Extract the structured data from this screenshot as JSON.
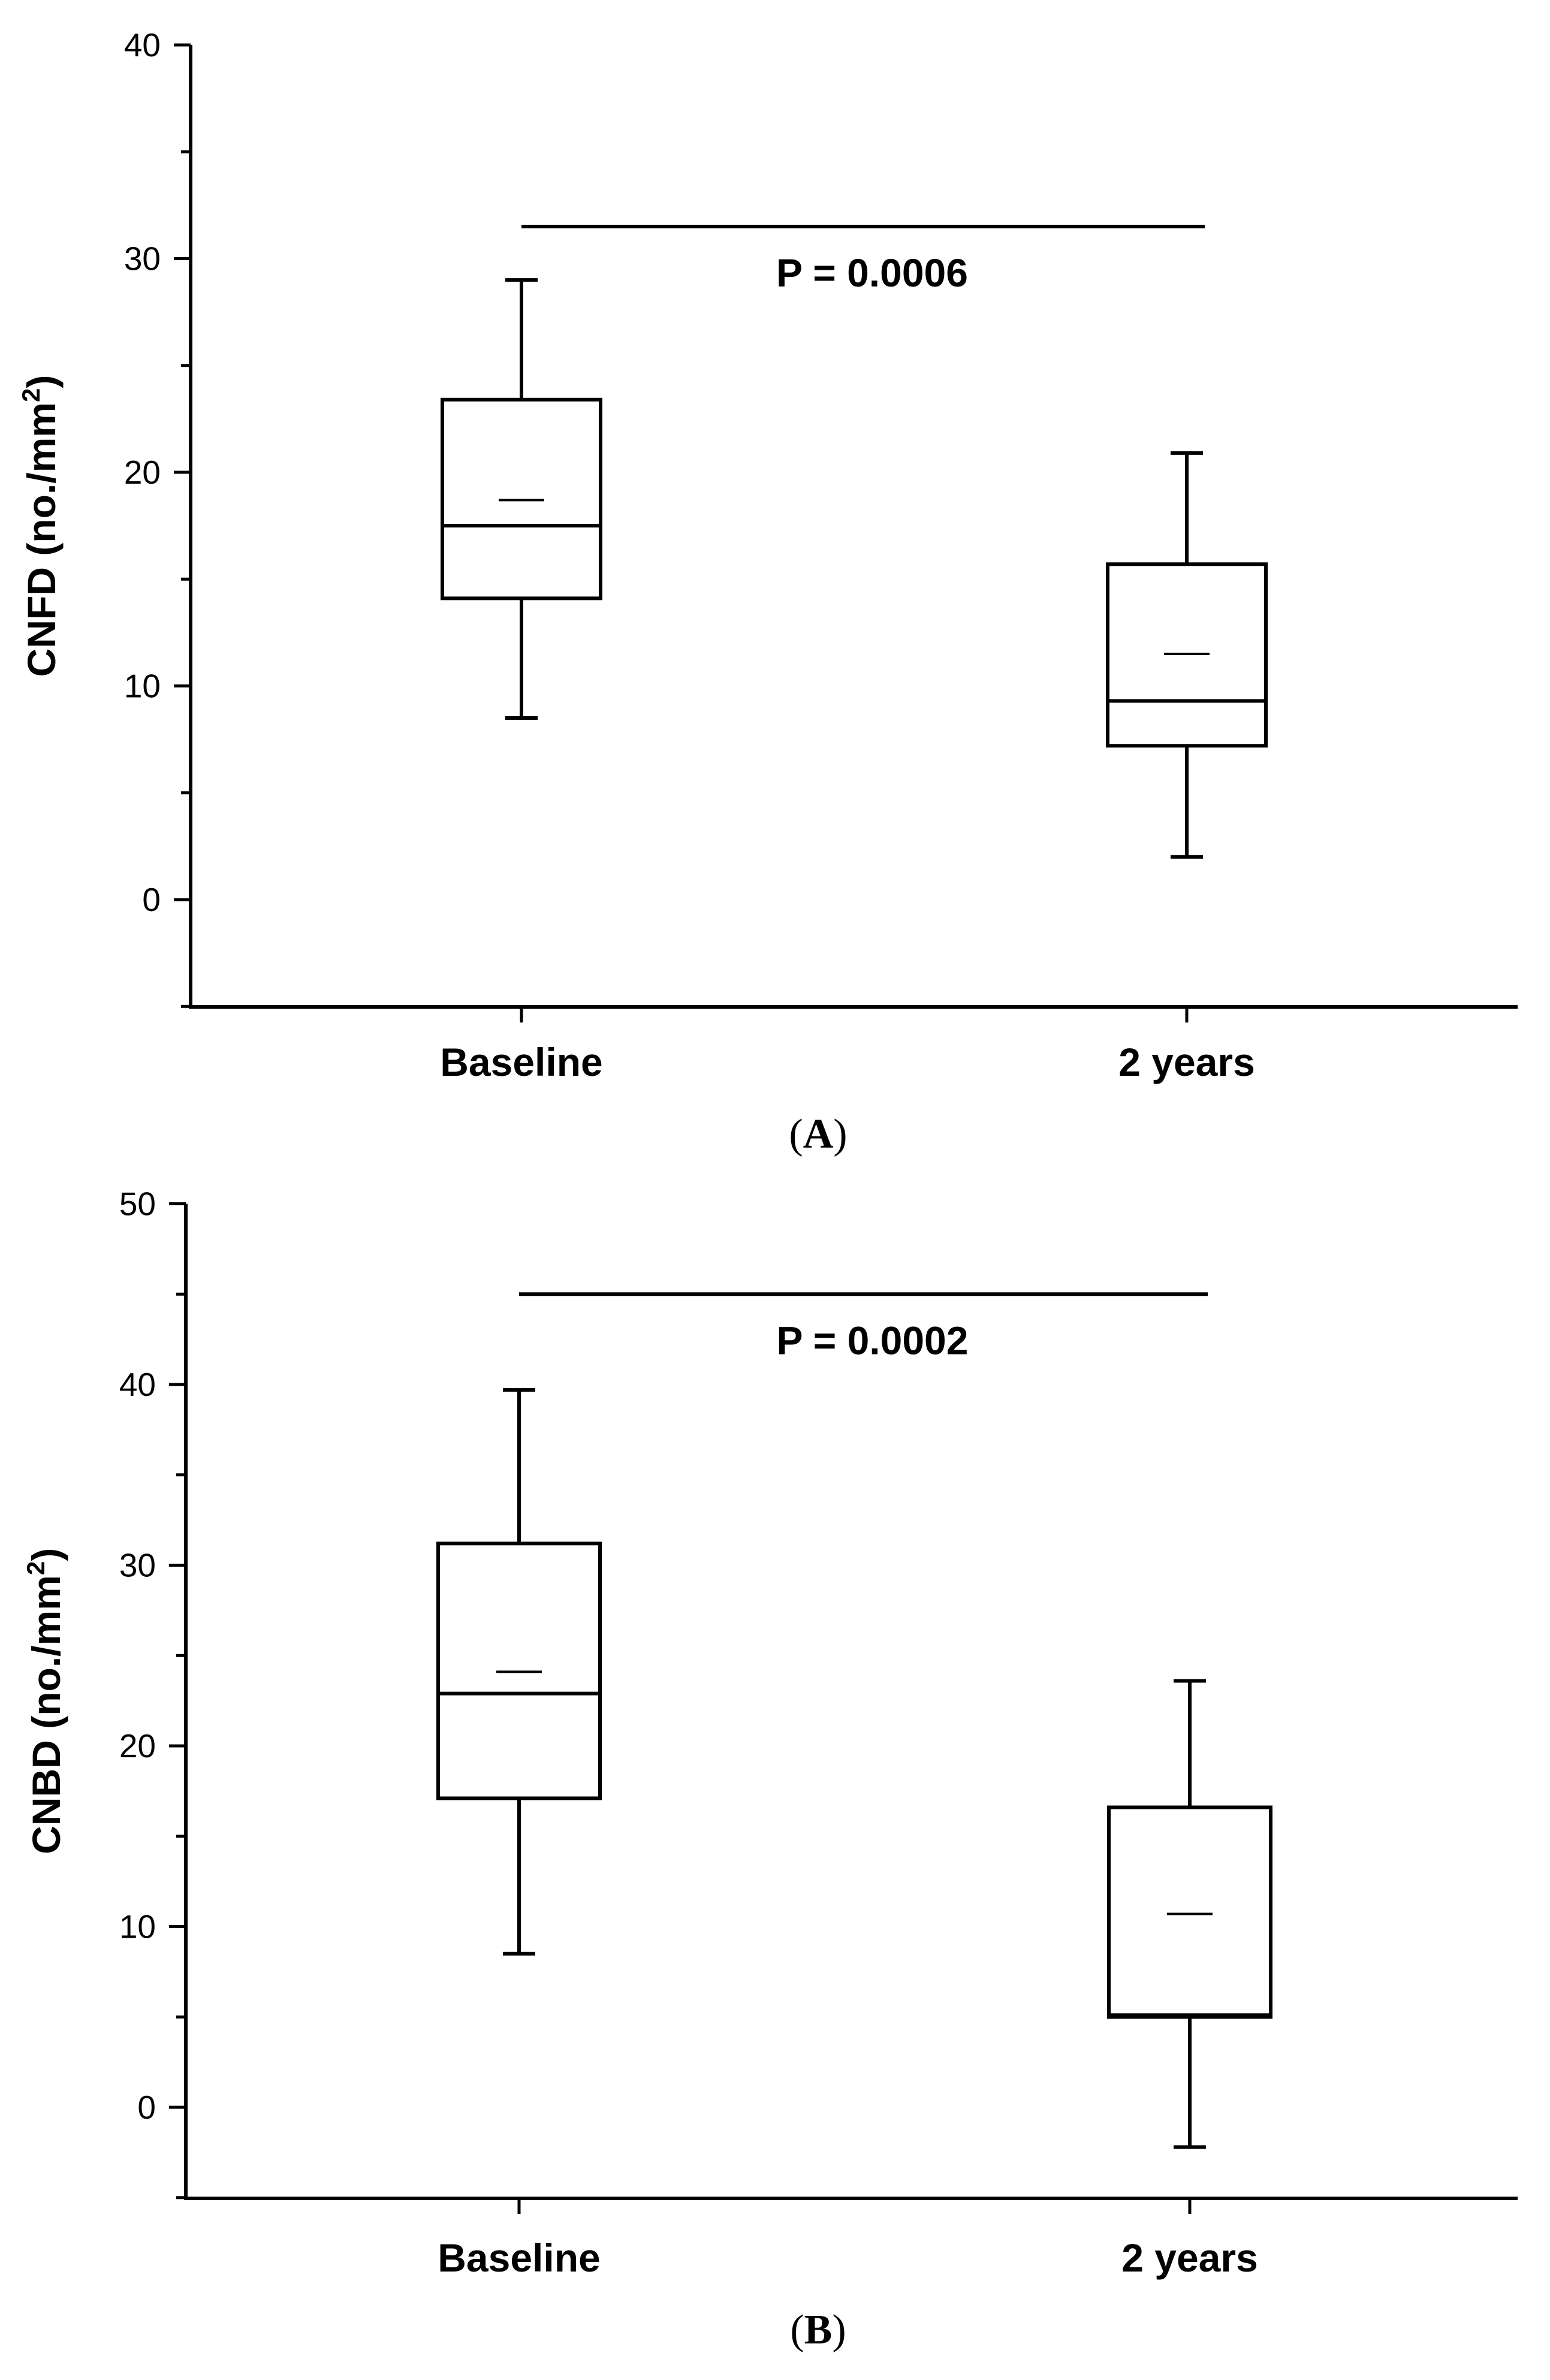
{
  "chart_data": [
    {
      "type": "box",
      "panel_label": "A",
      "ylabel": "CNFD (no./mm",
      "ylabel_sup": "2",
      "ylabel_close": ")",
      "ylim": [
        -5,
        40
      ],
      "yticks": [
        0,
        10,
        20,
        30,
        40
      ],
      "categories": [
        "Baseline",
        "2 years"
      ],
      "boxes": [
        {
          "category": "Baseline",
          "whisker_low": 8.5,
          "q1": 14.1,
          "median": 17.5,
          "mean": 18.7,
          "q3": 23.4,
          "whisker_high": 29.0
        },
        {
          "category": "2 years",
          "whisker_low": 2.0,
          "q1": 7.2,
          "median": 9.3,
          "mean": 11.5,
          "q3": 15.7,
          "whisker_high": 20.9
        }
      ],
      "significance": {
        "label": "P = 0.0006",
        "y": 31.5
      }
    },
    {
      "type": "box",
      "panel_label": "B",
      "ylabel": "CNBD (no./mm",
      "ylabel_sup": "2",
      "ylabel_close": ")",
      "ylim": [
        -5,
        50
      ],
      "yticks": [
        0,
        10,
        20,
        30,
        40,
        50
      ],
      "categories": [
        "Baseline",
        "2 years"
      ],
      "boxes": [
        {
          "category": "Baseline",
          "whisker_low": 8.5,
          "q1": 17.1,
          "median": 22.9,
          "mean": 24.1,
          "q3": 31.2,
          "whisker_high": 39.7
        },
        {
          "category": "2 years",
          "whisker_low": -2.2,
          "q1": 5.0,
          "median": 5.1,
          "mean": 10.7,
          "q3": 16.6,
          "whisker_high": 23.6
        }
      ],
      "significance": {
        "label": "P = 0.0002",
        "y": 45.0
      }
    }
  ]
}
